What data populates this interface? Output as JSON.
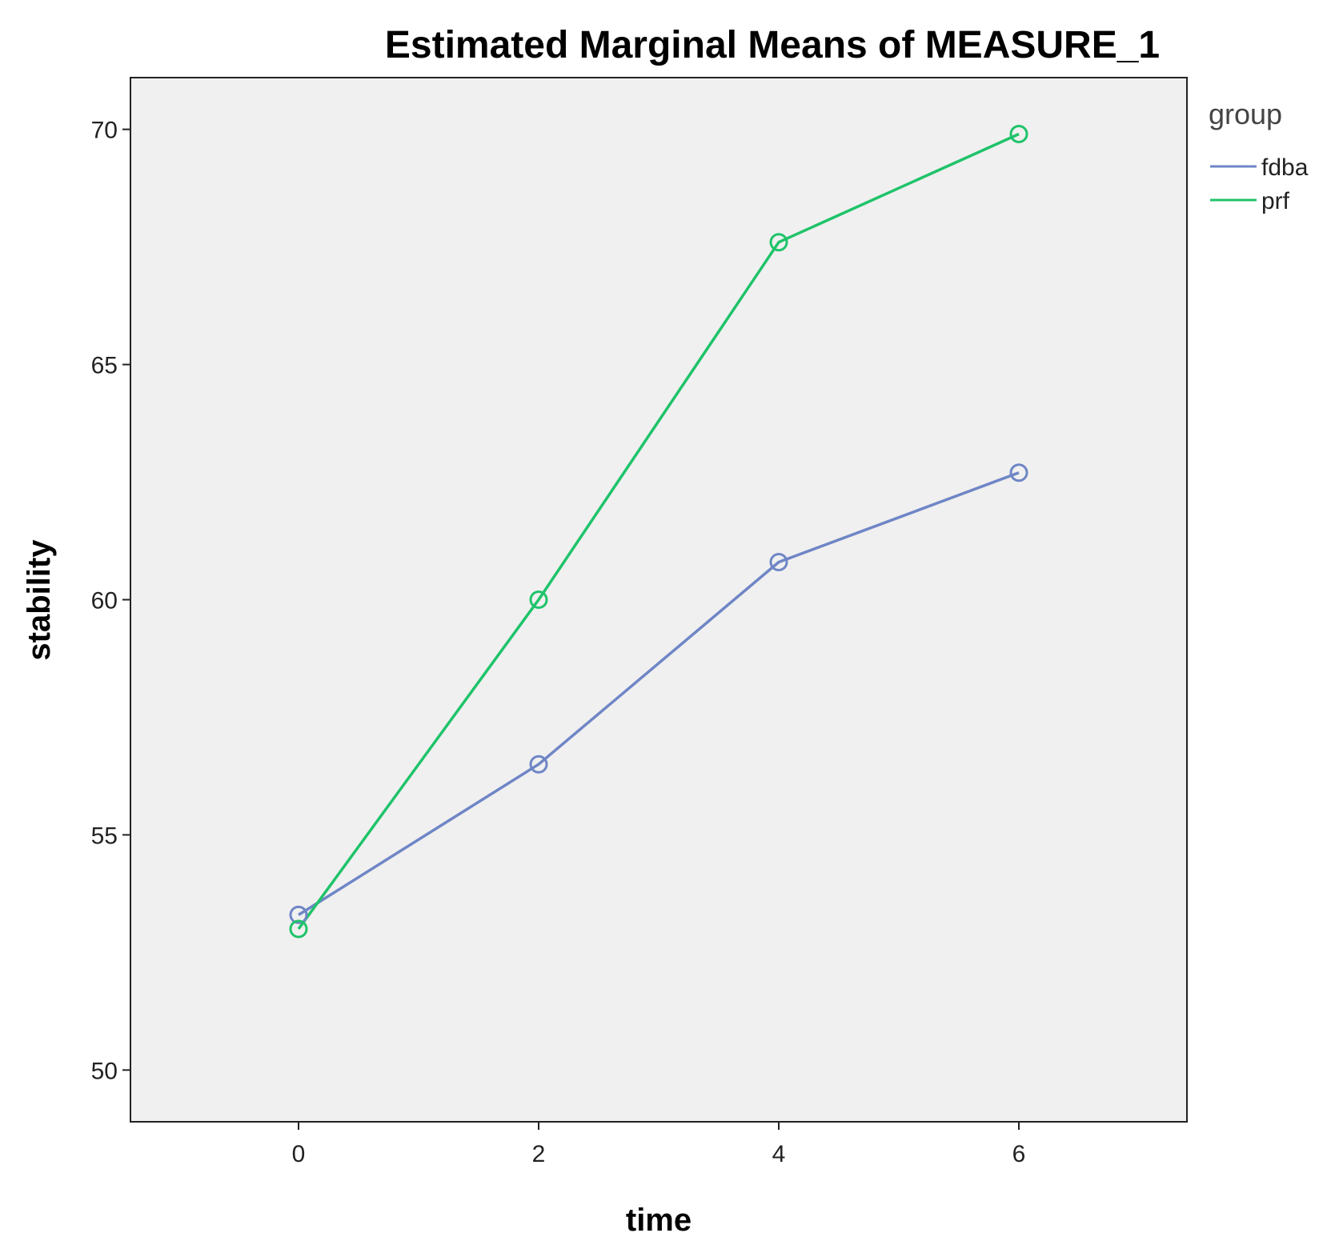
{
  "chart_data": {
    "type": "line",
    "title": "Estimated Marginal Means of MEASURE_1",
    "xlabel": "time",
    "ylabel": "stability",
    "x": [
      0,
      2,
      4,
      6
    ],
    "x_ticks": [
      "0",
      "2",
      "4",
      "6"
    ],
    "xlim": [
      -1.4,
      7.4
    ],
    "y_ticks": [
      "50",
      "55",
      "60",
      "65",
      "70"
    ],
    "ylim": [
      48.9,
      71.1
    ],
    "grid": false,
    "legend_title": "group",
    "legend_position": "right",
    "series": [
      {
        "name": "fdba",
        "color": "#6f86c6",
        "values": [
          53.3,
          56.5,
          60.8,
          62.7
        ]
      },
      {
        "name": "prf",
        "color": "#1fc36a",
        "values": [
          53.0,
          60.0,
          67.6,
          69.9
        ]
      }
    ],
    "plot_background": "#f0f0f0",
    "marker": "hollow-circle"
  }
}
